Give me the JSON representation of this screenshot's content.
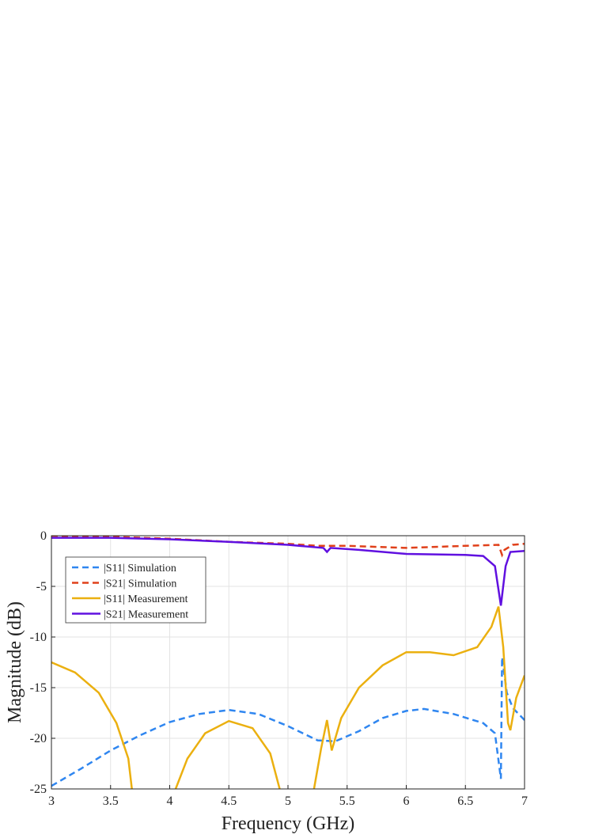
{
  "chart_data": {
    "type": "line",
    "xlabel": "Frequency (GHz)",
    "ylabel": "Magnitude (dB)",
    "xlim": [
      3,
      7
    ],
    "ylim": [
      -25,
      0
    ],
    "xticks": [
      3,
      3.5,
      4,
      4.5,
      5,
      5.5,
      6,
      6.5,
      7
    ],
    "yticks": [
      -25,
      -20,
      -15,
      -10,
      -5,
      0
    ],
    "grid": true,
    "legend": "upper left",
    "series": [
      {
        "name": "|S11| Simulation",
        "color": "#2f86f0",
        "dash": true,
        "x": [
          3,
          3.25,
          3.5,
          3.75,
          4,
          4.25,
          4.5,
          4.75,
          5,
          5.25,
          5.4,
          5.6,
          5.8,
          6,
          6.15,
          6.4,
          6.65,
          6.75,
          6.8,
          6.81,
          6.85,
          6.9,
          7
        ],
        "values": [
          -24.7,
          -23,
          -21.2,
          -19.7,
          -18.4,
          -17.6,
          -17.2,
          -17.6,
          -18.8,
          -20.2,
          -20.3,
          -19.3,
          -18,
          -17.3,
          -17.1,
          -17.6,
          -18.5,
          -19.5,
          -24,
          -12,
          -15.5,
          -17,
          -18.2
        ]
      },
      {
        "name": "|S21| Simulation",
        "color": "#e0401a",
        "dash": true,
        "x": [
          3,
          3.5,
          4,
          4.5,
          5,
          5.25,
          5.5,
          6,
          6.5,
          6.78,
          6.81,
          6.83,
          6.9,
          7
        ],
        "values": [
          0,
          -0.1,
          -0.3,
          -0.6,
          -0.8,
          -1.0,
          -1.0,
          -1.2,
          -1.0,
          -0.9,
          -1.9,
          -1.4,
          -0.9,
          -0.8
        ]
      },
      {
        "name": "|S11| Measurement",
        "color": "#ebb010",
        "dash": false,
        "x": [
          3,
          3.2,
          3.4,
          3.55,
          3.65,
          3.68,
          3.9,
          4.05,
          4.15,
          4.3,
          4.5,
          4.7,
          4.85,
          4.93,
          5.1,
          5.22,
          5.28,
          5.33,
          5.37,
          5.45,
          5.6,
          5.8,
          6,
          6.2,
          6.4,
          6.6,
          6.72,
          6.78,
          6.82,
          6.86,
          6.88,
          6.93,
          7
        ],
        "values": [
          -12.5,
          -13.5,
          -15.5,
          -18.5,
          -22,
          -25,
          null,
          -25,
          -22,
          -19.5,
          -18.3,
          -19,
          -21.5,
          -25,
          null,
          -25,
          -21,
          -18.2,
          -21.2,
          -18,
          -15,
          -12.8,
          -11.5,
          -11.5,
          -11.8,
          -11,
          -9,
          -7,
          -11,
          -18.5,
          -19.2,
          -16,
          -13.8
        ]
      },
      {
        "name": "|S21| Measurement",
        "color": "#6010e0",
        "dash": false,
        "x": [
          3,
          3.5,
          4,
          4.5,
          5,
          5.3,
          5.33,
          5.36,
          5.6,
          6,
          6.5,
          6.65,
          6.75,
          6.8,
          6.84,
          6.88,
          7
        ],
        "values": [
          -0.2,
          -0.2,
          -0.35,
          -0.6,
          -0.9,
          -1.2,
          -1.6,
          -1.2,
          -1.4,
          -1.8,
          -1.9,
          -2.0,
          -3,
          -6.9,
          -3,
          -1.6,
          -1.5
        ]
      }
    ]
  }
}
